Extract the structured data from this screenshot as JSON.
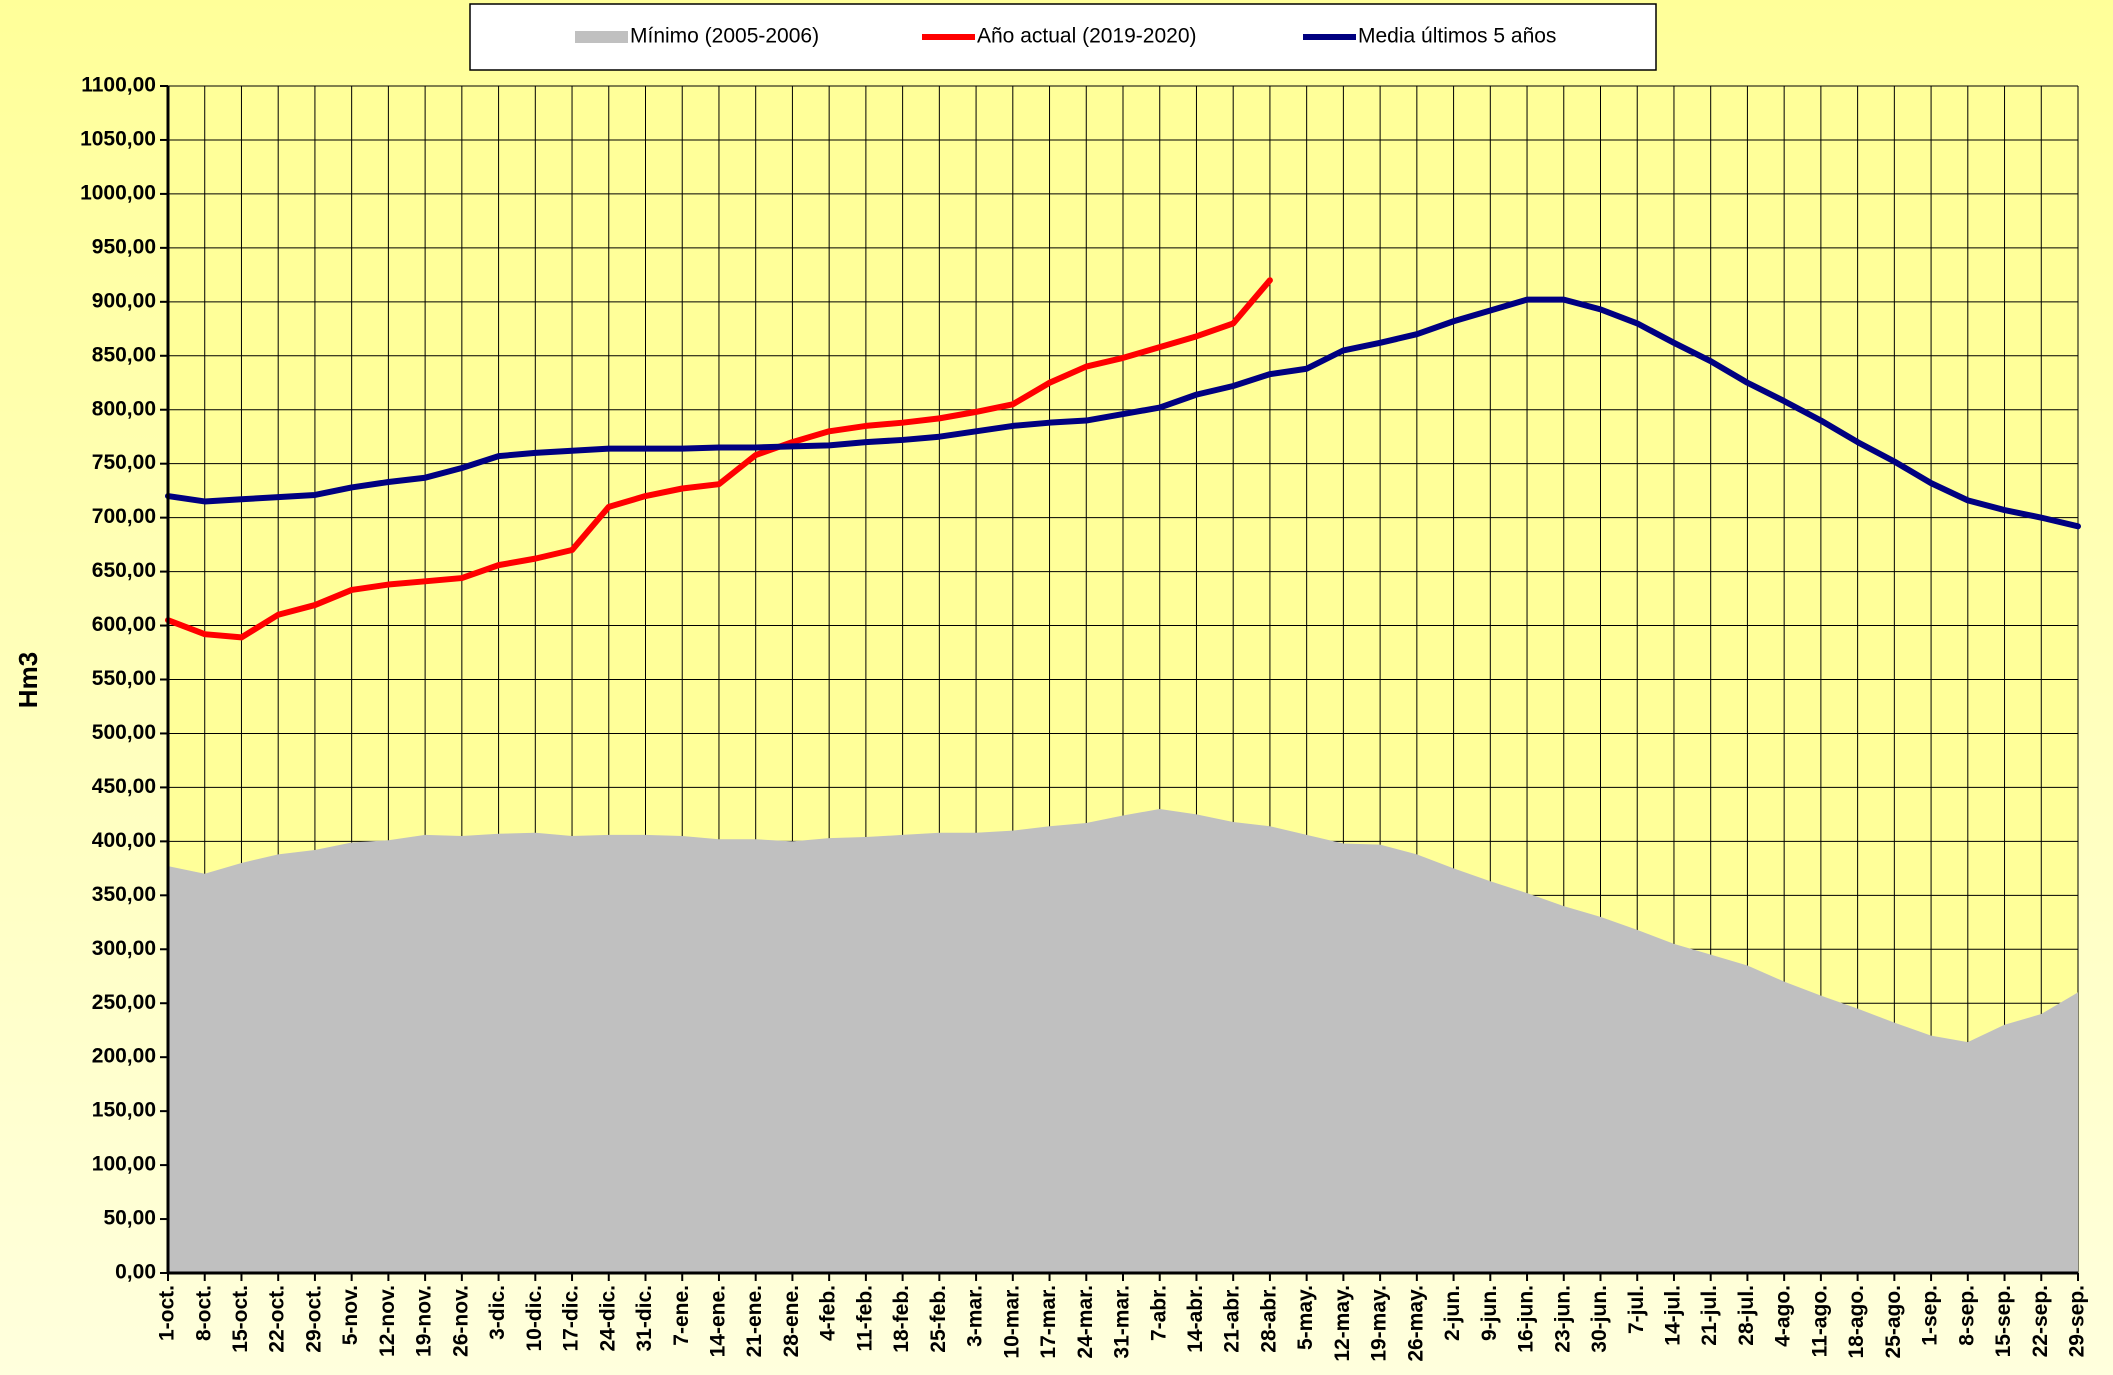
{
  "chart_data": {
    "type": "line",
    "y_label": "Hm3",
    "categories": [
      "1-oct.",
      "8-oct.",
      "15-oct.",
      "22-oct.",
      "29-oct.",
      "5-nov.",
      "12-nov.",
      "19-nov.",
      "26-nov.",
      "3-dic.",
      "10-dic.",
      "17-dic.",
      "24-dic.",
      "31-dic.",
      "7-ene.",
      "14-ene.",
      "21-ene.",
      "28-ene.",
      "4-feb.",
      "11-feb.",
      "18-feb.",
      "25-feb.",
      "3-mar.",
      "10-mar.",
      "17-mar.",
      "24-mar.",
      "31-mar.",
      "7-abr.",
      "14-abr.",
      "21-abr.",
      "28-abr.",
      "5-may.",
      "12-may.",
      "19-may.",
      "26-may.",
      "2-jun.",
      "9-jun.",
      "16-jun.",
      "23-jun.",
      "30-jun.",
      "7-jul.",
      "14-jul.",
      "21-jul.",
      "28-jul.",
      "4-ago.",
      "11-ago.",
      "18-ago.",
      "25-ago.",
      "1-sep.",
      "8-sep.",
      "15-sep.",
      "22-sep.",
      "29-sep."
    ],
    "series": [
      {
        "name": "Mínimo (2005-2006)",
        "color": "#c0c0c0",
        "type": "area",
        "values": [
          377,
          370,
          380,
          388,
          392,
          399,
          401,
          406,
          405,
          407,
          408,
          405,
          406,
          406,
          405,
          402,
          402,
          400,
          403,
          404,
          406,
          408,
          408,
          410,
          414,
          417,
          424,
          430,
          425,
          418,
          414,
          406,
          398,
          397,
          388,
          375,
          363,
          352,
          340,
          330,
          318,
          305,
          295,
          285,
          270,
          257,
          245,
          232,
          220,
          214,
          230,
          240,
          260
        ]
      },
      {
        "name": "Año actual (2019-2020)",
        "color": "#ff0000",
        "type": "line",
        "values": [
          605,
          592,
          589,
          610,
          619,
          633,
          638,
          641,
          644,
          656,
          662,
          670,
          710,
          720,
          727,
          731,
          758,
          770,
          780,
          785,
          788,
          792,
          798,
          805,
          825,
          840,
          848,
          858,
          868,
          880,
          920,
          null,
          null,
          null,
          null,
          null,
          null,
          null,
          null,
          null,
          null,
          null,
          null,
          null,
          null,
          null,
          null,
          null,
          null,
          null,
          null,
          null,
          null
        ]
      },
      {
        "name": "Media últimos 5 años",
        "color": "#000080",
        "type": "line",
        "values": [
          720,
          715,
          717,
          719,
          721,
          728,
          733,
          737,
          746,
          757,
          760,
          762,
          764,
          764,
          764,
          765,
          765,
          766,
          767,
          770,
          772,
          775,
          780,
          785,
          788,
          790,
          796,
          802,
          814,
          822,
          833,
          838,
          855,
          862,
          870,
          882,
          892,
          902,
          902,
          893,
          880,
          862,
          845,
          825,
          808,
          790,
          770,
          752,
          732,
          716,
          707,
          700,
          692
        ]
      }
    ],
    "ylim": [
      0,
      1100
    ],
    "yticks": [
      {
        "value": 0,
        "label": "0,00"
      },
      {
        "value": 50,
        "label": "50,00"
      },
      {
        "value": 100,
        "label": "100,00"
      },
      {
        "value": 150,
        "label": "150,00"
      },
      {
        "value": 200,
        "label": "200,00"
      },
      {
        "value": 250,
        "label": "250,00"
      },
      {
        "value": 300,
        "label": "300,00"
      },
      {
        "value": 350,
        "label": "350,00"
      },
      {
        "value": 400,
        "label": "400,00"
      },
      {
        "value": 450,
        "label": "450,00"
      },
      {
        "value": 500,
        "label": "500,00"
      },
      {
        "value": 550,
        "label": "550,00"
      },
      {
        "value": 600,
        "label": "600,00"
      },
      {
        "value": 650,
        "label": "650,00"
      },
      {
        "value": 700,
        "label": "700,00"
      },
      {
        "value": 750,
        "label": "750,00"
      },
      {
        "value": 800,
        "label": "800,00"
      },
      {
        "value": 850,
        "label": "850,00"
      },
      {
        "value": 900,
        "label": "900,00"
      },
      {
        "value": 950,
        "label": "950,00"
      },
      {
        "value": 1000,
        "label": "1000,00"
      },
      {
        "value": 1050,
        "label": "1050,00"
      },
      {
        "value": 1100,
        "label": "1100,00"
      }
    ],
    "grid": true,
    "legend": "top",
    "plot_background": "#ffff99"
  }
}
